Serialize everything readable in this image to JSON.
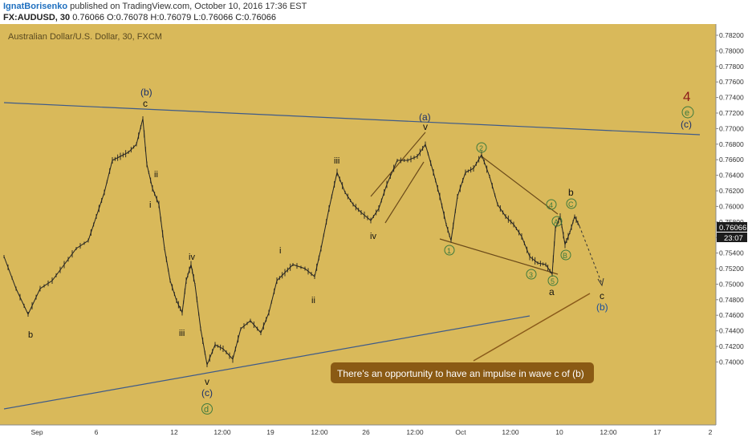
{
  "header": {
    "author": "IgnatBorisenko",
    "published": "published on TradingView.com, October 10, 2016 17:36 EST",
    "symbol_label": "FX:AUDUSD, 30",
    "ohlc": "0.76066 O:0.76078 H:0.76079 L:0.76066 C:0.76066"
  },
  "chart": {
    "instrument_title": "Australian Dollar/U.S. Dollar, 30, FXCM",
    "background_color": "#d9b95a",
    "price_tag": "0.76066",
    "time_tag": "23:07",
    "callout": "There's an opportunity to have an impulse in wave c of (b)"
  },
  "chart_data": {
    "type": "candlestick",
    "y_axis_ticks": [
      "0.78200",
      "0.78000",
      "0.77800",
      "0.77600",
      "0.77400",
      "0.77200",
      "0.77000",
      "0.76800",
      "0.76600",
      "0.76400",
      "0.76200",
      "0.76000",
      "0.75800",
      "0.75600",
      "0.75400",
      "0.75200",
      "0.75000",
      "0.74800",
      "0.74600",
      "0.74400",
      "0.74200",
      "0.74000"
    ],
    "x_axis_ticks": [
      "Sep",
      "6",
      "12",
      "12:00",
      "19",
      "12:00",
      "26",
      "12:00",
      "Oct",
      "12:00",
      "10",
      "12:00",
      "17",
      "2"
    ],
    "wave_labels": [
      "(b)",
      "c",
      "ii",
      "i",
      "iii",
      "iv",
      "v",
      "(c)",
      "d",
      "b",
      "i",
      "ii",
      "iii",
      "iv",
      "(a)",
      "v",
      "1",
      "2",
      "3",
      "4",
      "5",
      "a",
      "A",
      "B",
      "C",
      "b",
      "c",
      "(b)",
      "4",
      "e",
      "(c)"
    ]
  }
}
